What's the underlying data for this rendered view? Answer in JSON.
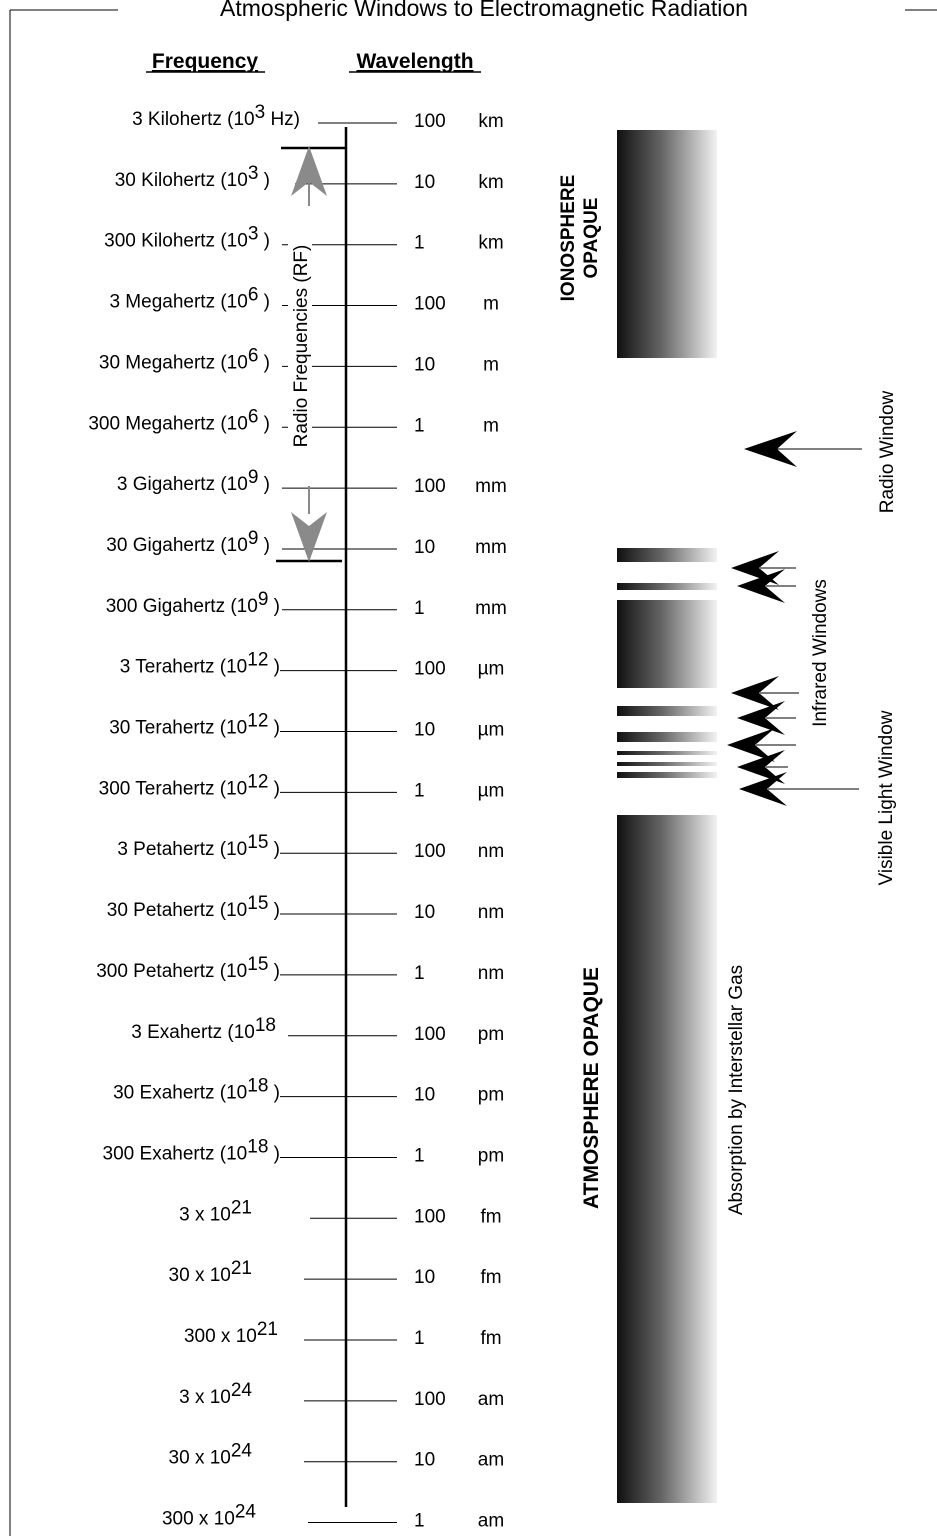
{
  "title": "Atmospheric Windows to Electromagnetic Radiation",
  "headers": {
    "frequency": "Frequency",
    "wavelength": "Wavelength"
  },
  "rows": [
    {
      "freq_base": "3 Kilohertz (10",
      "freq_exp": "3",
      "freq_suffix": " Hz)",
      "wl_value": "100",
      "wl_unit": "km"
    },
    {
      "freq_base": "30 Kilohertz (10",
      "freq_exp": "3",
      "freq_suffix": " )",
      "wl_value": "10",
      "wl_unit": "km"
    },
    {
      "freq_base": "300 Kilohertz (10",
      "freq_exp": "3",
      "freq_suffix": " )",
      "wl_value": "1",
      "wl_unit": "km"
    },
    {
      "freq_base": "3 Megahertz (10",
      "freq_exp": "6",
      "freq_suffix": " )",
      "wl_value": "100",
      "wl_unit": "m"
    },
    {
      "freq_base": "30 Megahertz (10",
      "freq_exp": "6",
      "freq_suffix": " )",
      "wl_value": "10",
      "wl_unit": "m"
    },
    {
      "freq_base": "300 Megahertz (10",
      "freq_exp": "6",
      "freq_suffix": " )",
      "wl_value": "1",
      "wl_unit": "m"
    },
    {
      "freq_base": "3 Gigahertz (10",
      "freq_exp": "9",
      "freq_suffix": " )",
      "wl_value": "100",
      "wl_unit": "mm"
    },
    {
      "freq_base": "30 Gigahertz (10",
      "freq_exp": "9",
      "freq_suffix": " )",
      "wl_value": "10",
      "wl_unit": "mm"
    },
    {
      "freq_base": "300 Gigahertz (10",
      "freq_exp": "9",
      "freq_suffix": " )",
      "wl_value": "1",
      "wl_unit": "mm"
    },
    {
      "freq_base": "3 Terahertz (10",
      "freq_exp": "12",
      "freq_suffix": " )",
      "wl_value": "100",
      "wl_unit": "µm"
    },
    {
      "freq_base": "30 Terahertz (10",
      "freq_exp": "12",
      "freq_suffix": " )",
      "wl_value": "10",
      "wl_unit": "µm"
    },
    {
      "freq_base": "300 Terahertz (10",
      "freq_exp": "12",
      "freq_suffix": " )",
      "wl_value": "1",
      "wl_unit": "µm"
    },
    {
      "freq_base": "3 Petahertz (10",
      "freq_exp": "15",
      "freq_suffix": " )",
      "wl_value": "100",
      "wl_unit": "nm"
    },
    {
      "freq_base": "30 Petahertz (10",
      "freq_exp": "15",
      "freq_suffix": " )",
      "wl_value": "10",
      "wl_unit": "nm"
    },
    {
      "freq_base": "300 Petahertz (10",
      "freq_exp": "15",
      "freq_suffix": " )",
      "wl_value": "1",
      "wl_unit": "nm"
    },
    {
      "freq_base": "3 Exahertz (10",
      "freq_exp": "18",
      "freq_suffix": "",
      "wl_value": "100",
      "wl_unit": "pm"
    },
    {
      "freq_base": "30 Exahertz (10",
      "freq_exp": "18",
      "freq_suffix": " )",
      "wl_value": "10",
      "wl_unit": "pm"
    },
    {
      "freq_base": "300 Exahertz (10",
      "freq_exp": "18",
      "freq_suffix": " )",
      "wl_value": "1",
      "wl_unit": "pm"
    },
    {
      "freq_base": "3 x 10",
      "freq_exp": "21",
      "freq_suffix": "",
      "wl_value": "100",
      "wl_unit": "fm"
    },
    {
      "freq_base": "30 x 10",
      "freq_exp": "21",
      "freq_suffix": "",
      "wl_value": "10",
      "wl_unit": "fm"
    },
    {
      "freq_base": "300 x 10",
      "freq_exp": "21",
      "freq_suffix": "",
      "wl_value": "1",
      "wl_unit": "fm"
    },
    {
      "freq_base": "3 x 10",
      "freq_exp": "24",
      "freq_suffix": "",
      "wl_value": "100",
      "wl_unit": "am"
    },
    {
      "freq_base": "30 x 10",
      "freq_exp": "24",
      "freq_suffix": "",
      "wl_value": "10",
      "wl_unit": "am"
    },
    {
      "freq_base": "300 x 10",
      "freq_exp": "24",
      "freq_suffix": "",
      "wl_value": "1",
      "wl_unit": "am"
    }
  ],
  "labels": {
    "radio_frequencies": "Radio Frequencies (RF)",
    "ionosphere_opaque_1": "IONOSPHERE",
    "ionosphere_opaque_2": "OPAQUE",
    "atmosphere_opaque": "ATMOSPHERE OPAQUE",
    "absorption": "Absorption by Interstellar Gas",
    "radio_window": "Radio Window",
    "infrared_windows": "Infrared Windows",
    "visible_light_window": "Visible Light Window"
  },
  "colors": {
    "rf_arrow": "#8a8a8a",
    "ink": "#000000"
  }
}
